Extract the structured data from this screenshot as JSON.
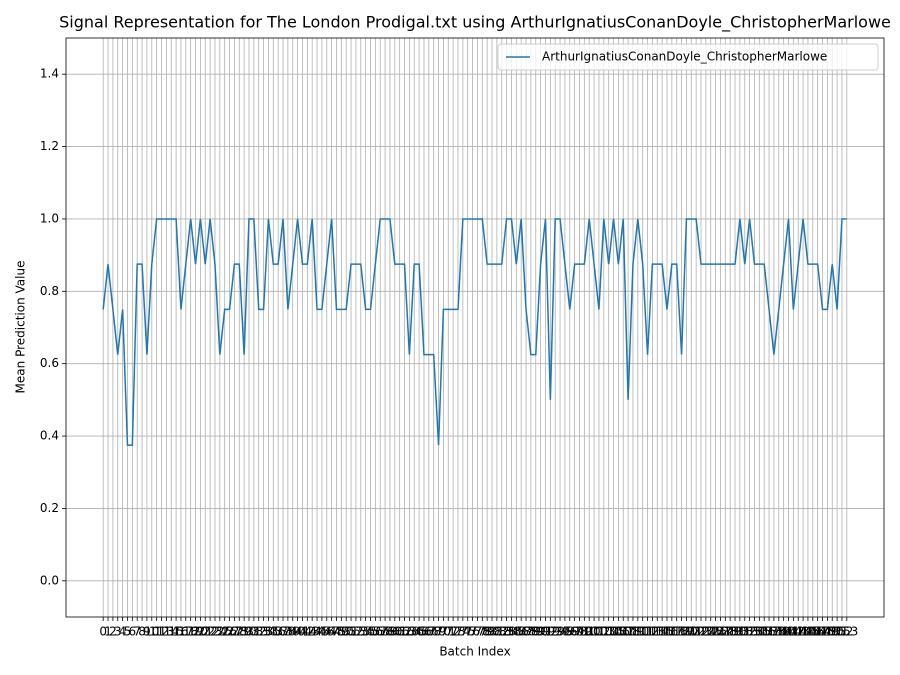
{
  "chart_data": {
    "type": "line",
    "title": "Signal Representation for The London Prodigal.txt using ArthurIgnatiusConanDoyle_ChristopherMarlowe",
    "xlabel": "Batch Index",
    "ylabel": "Mean Prediction Value",
    "x": [
      0,
      1,
      2,
      3,
      4,
      5,
      6,
      7,
      8,
      9,
      10,
      11,
      12,
      13,
      14,
      15,
      16,
      17,
      18,
      19,
      20,
      21,
      22,
      23,
      24,
      25,
      26,
      27,
      28,
      29,
      30,
      31,
      32,
      33,
      34,
      35,
      36,
      37,
      38,
      39,
      40,
      41,
      42,
      43,
      44,
      45,
      46,
      47,
      48,
      49,
      50,
      51,
      52,
      53,
      54,
      55,
      56,
      57,
      58,
      59,
      60,
      61,
      62,
      63,
      64,
      65,
      66,
      67,
      68,
      69,
      70,
      71,
      72,
      73,
      74,
      75,
      76,
      77,
      78,
      79,
      80,
      81,
      82,
      83,
      84,
      85,
      86,
      87,
      88,
      89,
      90,
      91,
      92,
      93,
      94,
      95,
      96,
      97,
      98,
      99,
      100,
      101,
      102,
      103,
      104,
      105,
      106,
      107,
      108,
      109,
      110,
      111,
      112,
      113,
      114,
      115,
      116,
      117,
      118,
      119,
      120,
      121,
      122,
      123,
      124,
      125,
      126,
      127,
      128,
      129,
      130,
      131,
      132,
      133,
      134,
      135,
      136,
      137,
      138,
      139,
      140,
      141,
      142,
      143,
      144,
      145,
      146,
      147,
      148,
      149,
      150,
      151,
      152,
      153
    ],
    "series": [
      {
        "name": "ArthurIgnatiusConanDoyle_ChristopherMarlowe",
        "color": "#1f77b4",
        "values": [
          0.75,
          0.875,
          0.75,
          0.625,
          0.75,
          0.375,
          0.375,
          0.875,
          0.875,
          0.625,
          0.875,
          1.0,
          1.0,
          1.0,
          1.0,
          1.0,
          0.75,
          0.875,
          1.0,
          0.875,
          1.0,
          0.875,
          1.0,
          0.875,
          0.625,
          0.75,
          0.75,
          0.875,
          0.875,
          0.625,
          1.0,
          1.0,
          0.75,
          0.75,
          1.0,
          0.875,
          0.875,
          1.0,
          0.75,
          0.875,
          1.0,
          0.875,
          0.875,
          1.0,
          0.75,
          0.75,
          0.875,
          1.0,
          0.75,
          0.75,
          0.75,
          0.875,
          0.875,
          0.875,
          0.75,
          0.75,
          0.875,
          1.0,
          1.0,
          1.0,
          0.875,
          0.875,
          0.875,
          0.625,
          0.875,
          0.875,
          0.625,
          0.625,
          0.625,
          0.375,
          0.75,
          0.75,
          0.75,
          0.75,
          1.0,
          1.0,
          1.0,
          1.0,
          1.0,
          0.875,
          0.875,
          0.875,
          0.875,
          1.0,
          1.0,
          0.875,
          1.0,
          0.75,
          0.625,
          0.625,
          0.875,
          1.0,
          0.5,
          1.0,
          1.0,
          0.875,
          0.75,
          0.875,
          0.875,
          0.875,
          1.0,
          0.875,
          0.75,
          1.0,
          0.875,
          1.0,
          0.875,
          1.0,
          0.5,
          0.875,
          1.0,
          0.875,
          0.625,
          0.875,
          0.875,
          0.875,
          0.75,
          0.875,
          0.875,
          0.625,
          1.0,
          1.0,
          1.0,
          0.875,
          0.875,
          0.875,
          0.875,
          0.875,
          0.875,
          0.875,
          0.875,
          1.0,
          0.875,
          1.0,
          0.875,
          0.875,
          0.875,
          0.75,
          0.625,
          0.75,
          0.875,
          1.0,
          0.75,
          0.875,
          1.0,
          0.875,
          0.875,
          0.875,
          0.75,
          0.75,
          0.875,
          0.75,
          1.0,
          1.0
        ]
      }
    ],
    "xlim": [
      -7.65,
      160.65
    ],
    "ylim": [
      -0.1,
      1.5
    ],
    "yticks": [
      {
        "value": 0,
        "label": "0.0"
      },
      0.2,
      0.4,
      0.6,
      0.8,
      {
        "value": 1,
        "label": "1.0"
      },
      1.2,
      1.4
    ],
    "grid": true,
    "legend": "upper right"
  }
}
